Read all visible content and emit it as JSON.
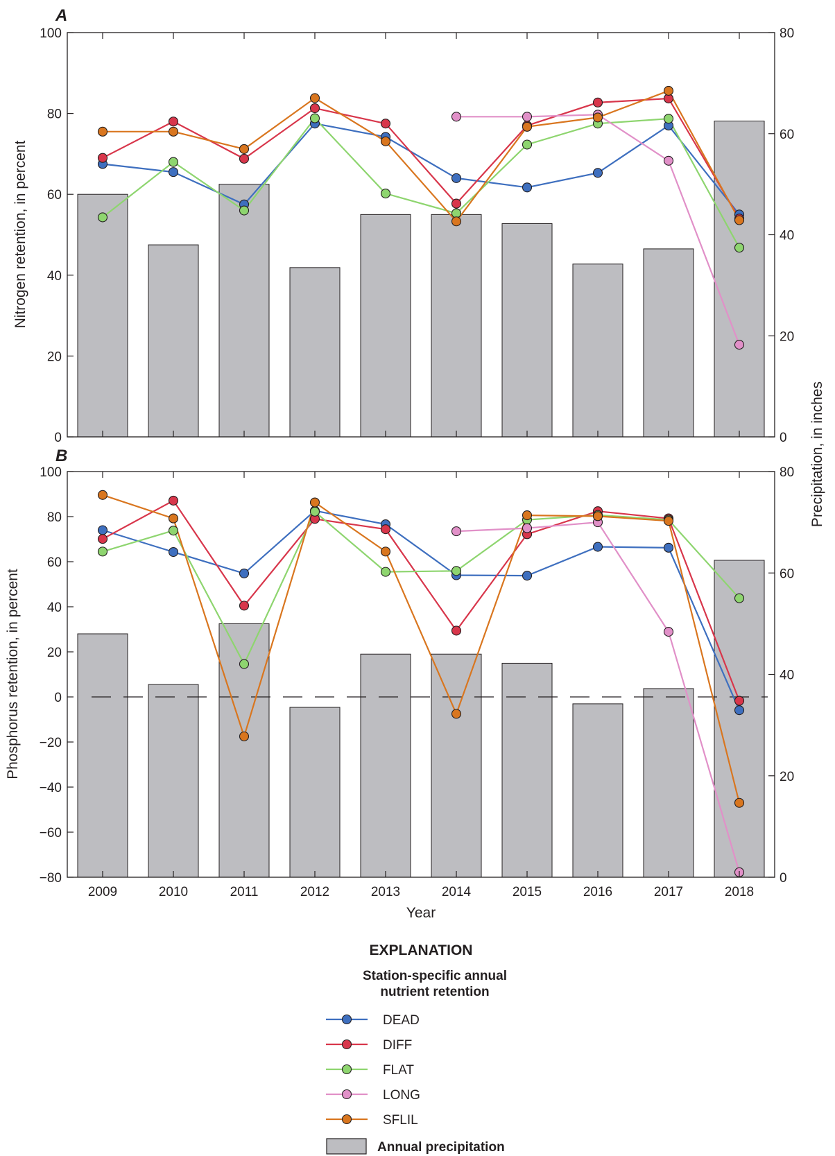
{
  "chart_data": [
    {
      "type": "line",
      "panel": "A",
      "years": [
        "2009",
        "2010",
        "2011",
        "2012",
        "2013",
        "2014",
        "2015",
        "2016",
        "2017",
        "2018"
      ],
      "ylabel": "Nitrogen retention, in percent",
      "ylim": [
        0,
        100
      ],
      "yticks": [
        "0",
        "20",
        "40",
        "60",
        "80",
        "100"
      ],
      "y2label": "Precipitation, in inches",
      "y2lim": [
        0,
        80
      ],
      "y2ticks": [
        "0",
        "20",
        "40",
        "60",
        "80"
      ],
      "precipitation": [
        48,
        38,
        50,
        33.5,
        44,
        44,
        42.2,
        34.2,
        37.2,
        62.5
      ],
      "series": [
        {
          "name": "DEAD",
          "color": "#3e6fbf",
          "values": [
            67.5,
            65.5,
            57.5,
            77.5,
            74.2,
            64.0,
            61.7,
            65.3,
            77.0,
            55.0
          ]
        },
        {
          "name": "DIFF",
          "color": "#d8364b",
          "values": [
            69.0,
            78.0,
            68.8,
            81.3,
            77.5,
            57.7,
            77.0,
            82.7,
            83.7,
            54.0
          ]
        },
        {
          "name": "FLAT",
          "color": "#8ed56f",
          "values": [
            54.3,
            68.0,
            56.0,
            78.8,
            60.2,
            55.3,
            72.3,
            77.5,
            78.7,
            46.8
          ]
        },
        {
          "name": "LONG",
          "color": "#e190c8",
          "values": [
            null,
            null,
            null,
            null,
            null,
            79.2,
            79.2,
            79.7,
            68.3,
            22.8
          ]
        },
        {
          "name": "SFLIL",
          "color": "#d9761f",
          "values": [
            75.5,
            75.5,
            71.2,
            83.8,
            73.1,
            53.3,
            76.7,
            79.0,
            85.6,
            53.6
          ]
        }
      ]
    },
    {
      "type": "line",
      "panel": "B",
      "years": [
        "2009",
        "2010",
        "2011",
        "2012",
        "2013",
        "2014",
        "2015",
        "2016",
        "2017",
        "2018"
      ],
      "xlabel": "Year",
      "ylabel": "Phosphorus retention, in percent",
      "ylim": [
        -80,
        100
      ],
      "yticks": [
        "−80",
        "−60",
        "−40",
        "−20",
        "0",
        "20",
        "40",
        "60",
        "80",
        "100"
      ],
      "y2label": "Precipitation, in inches",
      "y2lim": [
        0,
        80
      ],
      "y2ticks": [
        "0",
        "20",
        "40",
        "60",
        "80"
      ],
      "precipitation": [
        48,
        38,
        50,
        33.5,
        44,
        44,
        42.2,
        34.2,
        37.2,
        62.5
      ],
      "zero_reference_line": "dashed",
      "series": [
        {
          "name": "DEAD",
          "color": "#3e6fbf",
          "values": [
            74.0,
            64.3,
            54.8,
            82.6,
            76.6,
            54.0,
            53.8,
            66.6,
            66.2,
            -5.9
          ]
        },
        {
          "name": "DIFF",
          "color": "#d8364b",
          "values": [
            70.1,
            87.1,
            40.5,
            79.0,
            74.4,
            29.4,
            72.2,
            82.4,
            79.2,
            -1.7
          ]
        },
        {
          "name": "FLAT",
          "color": "#8ed56f",
          "values": [
            64.5,
            73.8,
            14.6,
            82.2,
            55.5,
            55.9,
            78.6,
            80.7,
            78.6,
            43.8
          ]
        },
        {
          "name": "LONG",
          "color": "#e190c8",
          "values": [
            null,
            null,
            null,
            null,
            null,
            73.5,
            74.9,
            77.5,
            28.9,
            -77.8
          ]
        },
        {
          "name": "SFLIL",
          "color": "#d9761f",
          "values": [
            89.6,
            79.2,
            -17.5,
            86.3,
            64.5,
            -7.5,
            80.6,
            80.2,
            78.1,
            -47.0
          ]
        }
      ]
    }
  ],
  "legend": {
    "title": "EXPLANATION",
    "subtitle_line1": "Station-specific annual",
    "subtitle_line2": "nutrient retention",
    "items": [
      "DEAD",
      "DIFF",
      "FLAT",
      "LONG",
      "SFLIL"
    ],
    "bar_label": "Annual precipitation"
  }
}
